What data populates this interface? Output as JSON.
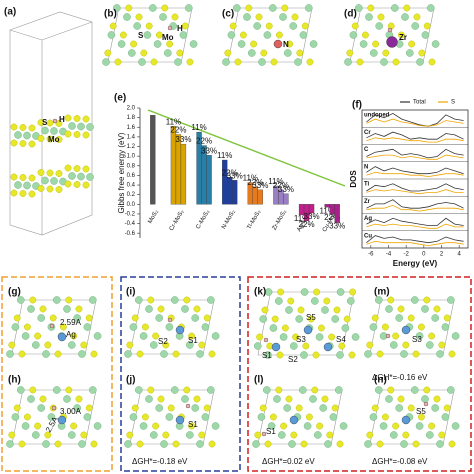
{
  "panels": {
    "a": "(a)",
    "b": "(b)",
    "c": "(c)",
    "d": "(d)",
    "e": "(e)",
    "f": "(f)",
    "g": "(g)",
    "h": "(h)",
    "i": "(i)",
    "j": "(j)",
    "k": "(k)",
    "l": "(l)",
    "m": "(m)",
    "n": "(n)"
  },
  "annotations": {
    "a_s": "S",
    "a_h": "H",
    "a_mo": "Mo",
    "b_s": "S",
    "b_h": "H",
    "b_mo": "Mo",
    "c_n": "N",
    "d_zr": "Zr",
    "g_d": "2.59A",
    "g_ag": "Ag",
    "h_d1": "3.00A",
    "h_d2": "2.5A",
    "i_s2": "S2",
    "i_s1": "S1",
    "j_s1": "S1",
    "j_dg": "ΔGH*=-0.18 eV",
    "k_s5": "S5",
    "k_s3": "S3",
    "k_s4": "S4",
    "k_s1": "S1",
    "k_s2": "S2",
    "m_s3": "S3",
    "m_dg": "ΔGH*=-0.16 eV",
    "l_s1": "S1",
    "l_dg": "ΔGH*=0.02 eV",
    "n_s5": "S5",
    "n_dg": "ΔGH*=-0.08 eV"
  },
  "chart_data": [
    {
      "type": "bar",
      "ylabel": "Gibbs free energy (eV)",
      "categories": [
        "MoS₂",
        "Cr-MoS₂",
        "C-MoS₂",
        "N-MoS₂",
        "Ti-MoS₂",
        "Zr-MoS₂",
        "Ag-MoS₂",
        "Cu-MoS₂"
      ],
      "colors": [
        "#555555",
        "#d9a400",
        "#2a7fa8",
        "#1f3f9a",
        "#e67a1e",
        "#9a7fc4",
        "#c01f8c",
        "#a8208a"
      ],
      "pristine_value": 1.85,
      "series": [
        {
          "name": "11%",
          "values": [
            null,
            1.62,
            1.5,
            0.92,
            0.45,
            0.38,
            -0.22,
            -0.06
          ]
        },
        {
          "name": "22%",
          "values": [
            null,
            1.45,
            1.22,
            0.56,
            0.36,
            0.3,
            -0.34,
            -0.2
          ]
        },
        {
          "name": "33%",
          "values": [
            null,
            1.25,
            1.02,
            0.5,
            0.3,
            0.22,
            -0.18,
            -0.38
          ]
        }
      ],
      "ylim": [
        -0.7,
        2.0
      ],
      "yticks": [
        -0.6,
        -0.4,
        -0.2,
        {
          "value": 0,
          "label": "0.0"
        },
        0.2,
        0.4,
        0.6,
        0.8,
        {
          "value": 1,
          "label": "1.0"
        },
        1.2,
        1.4,
        1.6,
        1.8,
        {
          "value": 2,
          "label": "2.0"
        }
      ]
    },
    {
      "type": "line",
      "xlabel": "Energy (eV)",
      "ylabel": "DOS",
      "xlim": [
        -7,
        5
      ],
      "xticks": [
        -6,
        -4,
        -2,
        0,
        2,
        4
      ],
      "ylim": [
        0,
        1
      ],
      "series": [
        {
          "name": "Total",
          "color": "#333333"
        },
        {
          "name": "S",
          "color": "#f0a500"
        }
      ],
      "x": [
        -6.5,
        -5.5,
        -4.5,
        -3.5,
        -2.5,
        -1.5,
        -0.5,
        0.5,
        1.5,
        2.5,
        3.5,
        4.5
      ],
      "rows": [
        {
          "name": "undoped",
          "total": [
            0.3,
            0.8,
            0.6,
            0.9,
            0.5,
            0.3,
            0.1,
            0,
            0.2,
            0.8,
            0.5,
            0.4
          ],
          "s": [
            0.2,
            0.5,
            0.3,
            0.5,
            0.3,
            0.2,
            0.05,
            0,
            0.1,
            0.4,
            0.3,
            0.2
          ]
        },
        {
          "name": "Cr",
          "total": [
            0.4,
            0.7,
            0.5,
            0.8,
            0.6,
            0.3,
            0.4,
            0.3,
            0.3,
            0.7,
            0.6,
            0.3
          ],
          "s": [
            0.2,
            0.4,
            0.3,
            0.4,
            0.3,
            0.2,
            0.2,
            0.1,
            0.1,
            0.3,
            0.3,
            0.2
          ]
        },
        {
          "name": "C",
          "total": [
            0.3,
            0.6,
            0.7,
            0.8,
            0.4,
            0.5,
            0.4,
            0.2,
            0.3,
            0.8,
            0.5,
            0.4
          ],
          "s": [
            0.2,
            0.3,
            0.4,
            0.4,
            0.2,
            0.3,
            0.2,
            0.1,
            0.1,
            0.4,
            0.3,
            0.2
          ]
        },
        {
          "name": "N",
          "total": [
            0.4,
            0.8,
            0.5,
            0.7,
            0.5,
            0.4,
            0.3,
            0.3,
            0.4,
            0.7,
            0.5,
            0.3
          ],
          "s": [
            0.2,
            0.4,
            0.3,
            0.3,
            0.3,
            0.2,
            0.2,
            0.1,
            0.2,
            0.3,
            0.3,
            0.2
          ]
        },
        {
          "name": "Ti",
          "total": [
            0.3,
            0.7,
            0.6,
            0.8,
            0.5,
            0.3,
            0.3,
            0.4,
            0.5,
            0.8,
            0.5,
            0.4
          ],
          "s": [
            0.2,
            0.4,
            0.3,
            0.4,
            0.3,
            0.2,
            0.1,
            0.2,
            0.2,
            0.4,
            0.2,
            0.2
          ]
        },
        {
          "name": "Zr",
          "total": [
            0.3,
            0.6,
            0.6,
            0.9,
            0.4,
            0.3,
            0.3,
            0.4,
            0.6,
            0.7,
            0.6,
            0.3
          ],
          "s": [
            0.2,
            0.3,
            0.3,
            0.5,
            0.2,
            0.2,
            0.1,
            0.2,
            0.3,
            0.3,
            0.3,
            0.2
          ]
        },
        {
          "name": "Ag",
          "total": [
            0.4,
            0.7,
            0.5,
            0.8,
            0.6,
            0.5,
            0.4,
            0.3,
            0.3,
            0.8,
            0.4,
            0.3
          ],
          "s": [
            0.2,
            0.4,
            0.3,
            0.4,
            0.3,
            0.3,
            0.2,
            0.1,
            0.1,
            0.4,
            0.2,
            0.2
          ]
        },
        {
          "name": "Cu",
          "total": [
            0.3,
            0.8,
            0.6,
            0.7,
            0.5,
            0.5,
            0.4,
            0.3,
            0.4,
            0.7,
            0.5,
            0.4
          ],
          "s": [
            0.2,
            0.4,
            0.3,
            0.3,
            0.3,
            0.3,
            0.2,
            0.1,
            0.2,
            0.3,
            0.3,
            0.2
          ]
        }
      ]
    }
  ]
}
